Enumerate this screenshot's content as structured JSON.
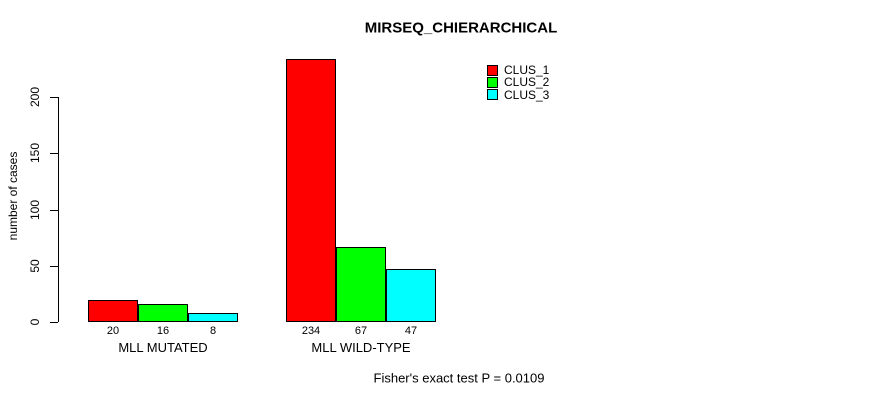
{
  "chart_data": {
    "type": "bar",
    "title": "MIRSEQ_CHIERARCHICAL",
    "ylabel": "number of cases",
    "xlabel": "",
    "ylim": [
      0,
      200
    ],
    "yticks": [
      0,
      50,
      100,
      150,
      200
    ],
    "grid": false,
    "legend_position": "top-right",
    "categories": [
      "MLL MUTATED",
      "MLL WILD-TYPE"
    ],
    "series": [
      {
        "name": "CLUS_1",
        "color": "#ff0000",
        "values": [
          20,
          234
        ]
      },
      {
        "name": "CLUS_2",
        "color": "#00ff00",
        "values": [
          16,
          67
        ]
      },
      {
        "name": "CLUS_3",
        "color": "#00ffff",
        "values": [
          8,
          47
        ]
      }
    ],
    "bar_value_labels": [
      [
        "20",
        "16",
        "8"
      ],
      [
        "234",
        "67",
        "47"
      ]
    ],
    "annotation": "Fisher's exact test P = 0.0109"
  }
}
